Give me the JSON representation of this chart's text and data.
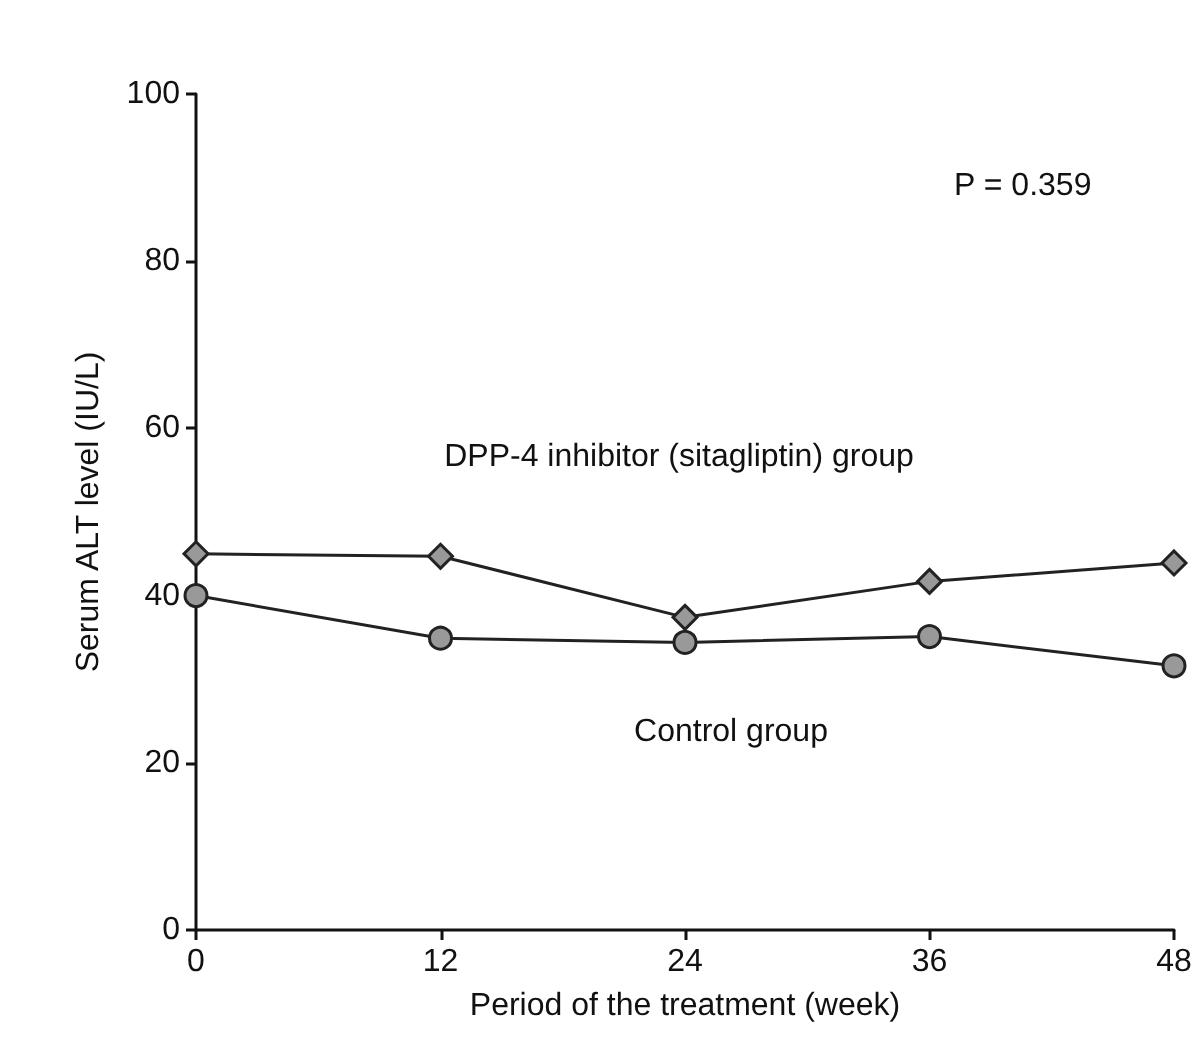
{
  "chart_data": {
    "type": "line",
    "xlabel": "Period of the treatment (week)",
    "ylabel": "Serum ALT level (IU/L)",
    "x": [
      0,
      12,
      24,
      36,
      48
    ],
    "series": [
      {
        "name": "DPP-4 inhibitor (sitagliptin) group",
        "color": "#222222",
        "marker": "diamond",
        "values": [
          45,
          44.7,
          37.4,
          41.7,
          43.9
        ]
      },
      {
        "name": "Control group",
        "color": "#222222",
        "marker": "circle",
        "values": [
          40,
          34.9,
          34.4,
          35.1,
          31.6
        ]
      }
    ],
    "annotations": [
      "P = 0.359"
    ],
    "xlim": [
      0,
      48
    ],
    "xticks": [
      0,
      12,
      24,
      36,
      48
    ],
    "ylim": [
      0,
      100
    ],
    "yticks": [
      0,
      20,
      40,
      60,
      80,
      100
    ],
    "grid": false,
    "legend": false,
    "line_style": "solid"
  }
}
